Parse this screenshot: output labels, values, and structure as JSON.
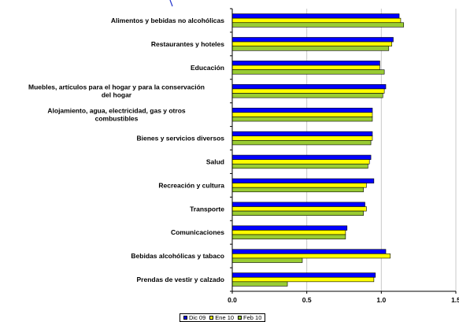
{
  "chart_data": {
    "type": "bar",
    "orientation": "horizontal",
    "title": "",
    "xlabel": "",
    "ylabel": "",
    "xlim": [
      0,
      1.5
    ],
    "xticks": [
      0,
      0.5,
      1,
      1.5
    ],
    "xtick_labels": [
      "0.0",
      "0.5",
      "1.0",
      "1.5"
    ],
    "grid": true,
    "legend_position": "bottom",
    "categories": [
      "Alimentos y bebidas no alcohólicas",
      "Restaurantes y hoteles",
      "Educación",
      "Muebles, artículos para el hogar y para la conservación del hogar",
      "Alojamiento, agua, electricidad, gas y otros combustibles",
      "Bienes y servicios diversos",
      "Salud",
      "Recreación y cultura",
      "Transporte",
      "Comunicaciones",
      "Bebidas alcohólicas y tabaco",
      "Prendas de vestir y calzado"
    ],
    "category_lines": [
      [
        "Alimentos y bebidas no alcohólicas"
      ],
      [
        "Restaurantes y hoteles"
      ],
      [
        "Educación"
      ],
      [
        "Muebles, artículos para el hogar y para la conservación",
        "del hogar"
      ],
      [
        "Alojamiento, agua, electricidad, gas y otros",
        "combustibles"
      ],
      [
        "Bienes y servicios diversos"
      ],
      [
        "Salud"
      ],
      [
        "Recreación y cultura"
      ],
      [
        "Transporte"
      ],
      [
        "Comunicaciones"
      ],
      [
        "Bebidas alcohólicas y tabaco"
      ],
      [
        "Prendas de vestir y calzado"
      ]
    ],
    "series": [
      {
        "name": "Dic 09",
        "color": "#0000ff",
        "values": [
          1.12,
          1.08,
          0.99,
          1.03,
          0.94,
          0.94,
          0.93,
          0.95,
          0.89,
          0.77,
          1.03,
          0.96
        ]
      },
      {
        "name": "Ene 10",
        "color": "#ffff00",
        "values": [
          1.13,
          1.07,
          0.99,
          1.02,
          0.94,
          0.94,
          0.92,
          0.9,
          0.9,
          0.76,
          1.06,
          0.95
        ]
      },
      {
        "name": "Feb 10",
        "color": "#99cc33",
        "values": [
          1.15,
          1.05,
          1.02,
          1.01,
          0.94,
          0.93,
          0.91,
          0.88,
          0.88,
          0.76,
          0.47,
          0.37
        ]
      }
    ]
  }
}
